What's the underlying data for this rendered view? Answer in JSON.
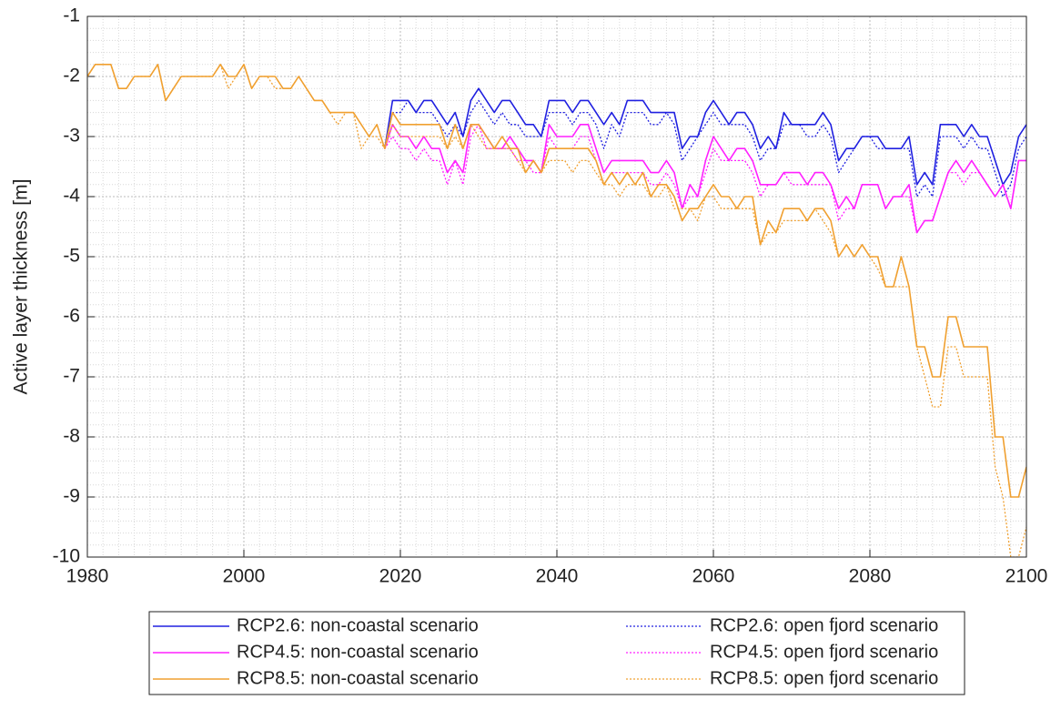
{
  "chart_data": {
    "type": "line",
    "y_label": "Active layer thickness [m]",
    "x": [
      1980,
      1981,
      1982,
      1983,
      1984,
      1985,
      1986,
      1987,
      1988,
      1989,
      1990,
      1991,
      1992,
      1993,
      1994,
      1995,
      1996,
      1997,
      1998,
      1999,
      2000,
      2001,
      2002,
      2003,
      2004,
      2005,
      2006,
      2007,
      2008,
      2009,
      2010,
      2011,
      2012,
      2013,
      2014,
      2015,
      2016,
      2017,
      2018,
      2019,
      2020,
      2021,
      2022,
      2023,
      2024,
      2025,
      2026,
      2027,
      2028,
      2029,
      2030,
      2031,
      2032,
      2033,
      2034,
      2035,
      2036,
      2037,
      2038,
      2039,
      2040,
      2041,
      2042,
      2043,
      2044,
      2045,
      2046,
      2047,
      2048,
      2049,
      2050,
      2051,
      2052,
      2053,
      2054,
      2055,
      2056,
      2057,
      2058,
      2059,
      2060,
      2061,
      2062,
      2063,
      2064,
      2065,
      2066,
      2067,
      2068,
      2069,
      2070,
      2071,
      2072,
      2073,
      2074,
      2075,
      2076,
      2077,
      2078,
      2079,
      2080,
      2081,
      2082,
      2083,
      2084,
      2085,
      2086,
      2087,
      2088,
      2089,
      2090,
      2091,
      2092,
      2093,
      2094,
      2095,
      2096,
      2097,
      2098,
      2099,
      2100
    ],
    "xlim": [
      1980,
      2100
    ],
    "xticks": [
      1980,
      2000,
      2020,
      2040,
      2060,
      2080,
      2100
    ],
    "ylim": [
      -10,
      -1
    ],
    "yticks": [
      -10,
      -9,
      -8,
      -7,
      -6,
      -5,
      -4,
      -3,
      -2,
      -1
    ],
    "grid": true,
    "minor_grid": true,
    "legend": "below",
    "series": [
      {
        "name": "RCP2.6: non-coastal scenario",
        "color": "#2020e0",
        "dash": "solid",
        "values": [
          null,
          null,
          null,
          null,
          null,
          null,
          null,
          null,
          null,
          null,
          null,
          null,
          null,
          null,
          null,
          null,
          null,
          null,
          null,
          null,
          null,
          null,
          null,
          null,
          null,
          null,
          null,
          null,
          null,
          null,
          null,
          null,
          null,
          null,
          null,
          null,
          null,
          null,
          -3.2,
          -2.4,
          -2.4,
          -2.4,
          -2.6,
          -2.4,
          -2.4,
          -2.6,
          -2.8,
          -2.6,
          -3,
          -2.4,
          -2.2,
          -2.4,
          -2.6,
          -2.4,
          -2.4,
          -2.6,
          -2.8,
          -2.8,
          -3,
          -2.4,
          -2.4,
          -2.4,
          -2.6,
          -2.4,
          -2.4,
          -2.6,
          -2.8,
          -2.6,
          -2.8,
          -2.4,
          -2.4,
          -2.4,
          -2.6,
          -2.6,
          -2.6,
          -2.6,
          -3.2,
          -3,
          -3,
          -2.6,
          -2.4,
          -2.6,
          -2.8,
          -2.6,
          -2.6,
          -2.8,
          -3.2,
          -3,
          -3.2,
          -2.6,
          -2.8,
          -2.8,
          -2.8,
          -2.8,
          -2.6,
          -2.8,
          -3.4,
          -3.2,
          -3.2,
          -3,
          -3,
          -3,
          -3.2,
          -3.2,
          -3.2,
          -3,
          -3.8,
          -3.6,
          -3.8,
          -2.8,
          -2.8,
          -2.8,
          -3,
          -2.8,
          -3,
          -3,
          -3.4,
          -3.8,
          -3.6,
          -3,
          -2.8
        ]
      },
      {
        "name": "RCP2.6: open fjord scenario",
        "color": "#2020e0",
        "dash": "dotted",
        "values": [
          null,
          null,
          null,
          null,
          null,
          null,
          null,
          null,
          null,
          null,
          null,
          null,
          null,
          null,
          null,
          null,
          null,
          null,
          null,
          null,
          null,
          null,
          null,
          null,
          null,
          null,
          null,
          null,
          null,
          null,
          null,
          null,
          null,
          null,
          null,
          null,
          null,
          null,
          -3.2,
          -2.6,
          -2.6,
          -2.4,
          -2.6,
          -2.6,
          -2.6,
          -2.8,
          -3,
          -2.8,
          -3,
          -2.6,
          -2.4,
          -2.6,
          -2.8,
          -2.6,
          -2.8,
          -2.8,
          -3,
          -3,
          -3,
          -2.6,
          -2.6,
          -2.6,
          -2.8,
          -2.6,
          -2.6,
          -2.8,
          -3.2,
          -2.8,
          -3,
          -2.6,
          -2.6,
          -2.6,
          -2.8,
          -2.8,
          -2.6,
          -2.8,
          -3.4,
          -3.2,
          -3,
          -2.8,
          -2.6,
          -2.8,
          -2.8,
          -2.8,
          -2.8,
          -3,
          -3.4,
          -3.2,
          -3.2,
          -2.8,
          -2.8,
          -2.8,
          -3,
          -3,
          -2.8,
          -3,
          -3.6,
          -3.4,
          -3.2,
          -3,
          -3,
          -3.2,
          -3.2,
          -3.2,
          -3.2,
          -3.2,
          -4,
          -3.8,
          -4,
          -3,
          -3,
          -3,
          -3.2,
          -3,
          -3.2,
          -3.2,
          -3.6,
          -4,
          -3.8,
          -3.2,
          -3
        ]
      },
      {
        "name": "RCP4.5: non-coastal scenario",
        "color": "#ff20ff",
        "dash": "solid",
        "values": [
          null,
          null,
          null,
          null,
          null,
          null,
          null,
          null,
          null,
          null,
          null,
          null,
          null,
          null,
          null,
          null,
          null,
          null,
          null,
          null,
          null,
          null,
          null,
          null,
          null,
          null,
          null,
          null,
          null,
          null,
          null,
          null,
          null,
          null,
          null,
          null,
          null,
          null,
          -3.2,
          -2.8,
          -3,
          -3,
          -3.2,
          -3,
          -3.2,
          -3.2,
          -3.6,
          -3.4,
          -3.6,
          -2.8,
          -2.8,
          -3,
          -3.2,
          -3.2,
          -3,
          -3.2,
          -3.4,
          -3.4,
          -3.6,
          -2.8,
          -3,
          -3,
          -3,
          -2.8,
          -2.8,
          -3.2,
          -3.6,
          -3.4,
          -3.4,
          -3.4,
          -3.4,
          -3.4,
          -3.6,
          -3.6,
          -3.4,
          -3.6,
          -4.2,
          -3.8,
          -4,
          -3.4,
          -3,
          -3.2,
          -3.4,
          -3.2,
          -3.2,
          -3.4,
          -3.8,
          -3.8,
          -3.8,
          -3.6,
          -3.6,
          -3.6,
          -3.8,
          -3.6,
          -3.6,
          -3.8,
          -4.2,
          -4,
          -4.2,
          -3.8,
          -3.8,
          -3.8,
          -4.2,
          -4,
          -4,
          -3.8,
          -4.6,
          -4.4,
          -4.4,
          -4,
          -3.6,
          -3.4,
          -3.6,
          -3.4,
          -3.6,
          -3.8,
          -4,
          -3.8,
          -4.2,
          -3.4,
          -3.4
        ]
      },
      {
        "name": "RCP4.5: open fjord scenario",
        "color": "#ff20ff",
        "dash": "dotted",
        "values": [
          null,
          null,
          null,
          null,
          null,
          null,
          null,
          null,
          null,
          null,
          null,
          null,
          null,
          null,
          null,
          null,
          null,
          null,
          null,
          null,
          null,
          null,
          null,
          null,
          null,
          null,
          null,
          null,
          null,
          null,
          null,
          null,
          null,
          null,
          null,
          null,
          null,
          null,
          -3.2,
          -3,
          -3.2,
          -3.2,
          -3.4,
          -3.2,
          -3.4,
          -3.4,
          -3.8,
          -3.4,
          -3.8,
          -3,
          -2.8,
          -3.2,
          -3.2,
          -3.2,
          -3.2,
          -3.4,
          -3.4,
          -3.6,
          -3.6,
          -3,
          -3.2,
          -3.2,
          -3.2,
          -3,
          -3,
          -3.4,
          -3.8,
          -3.6,
          -3.6,
          -3.6,
          -3.6,
          -3.6,
          -3.8,
          -3.8,
          -3.6,
          -3.8,
          -4.2,
          -4,
          -4,
          -3.6,
          -3.2,
          -3.4,
          -3.4,
          -3.4,
          -3.4,
          -3.6,
          -4,
          -3.8,
          -3.8,
          -3.6,
          -3.8,
          -3.8,
          -3.8,
          -3.8,
          -3.8,
          -3.8,
          -4.4,
          -4.2,
          -4.2,
          -3.8,
          -3.8,
          -3.8,
          -4.2,
          -4,
          -4,
          -4,
          -4.6,
          -4.4,
          -4.4,
          -4,
          -3.6,
          -3.6,
          -3.8,
          -3.6,
          -3.6,
          -3.8,
          -4,
          -3.8,
          -4.2,
          -3.4,
          -3.4
        ]
      },
      {
        "name": "RCP8.5: non-coastal scenario",
        "color": "#f0a030",
        "dash": "solid",
        "values": [
          -2,
          -1.8,
          -1.8,
          -1.8,
          -2.2,
          -2.2,
          -2,
          -2,
          -2,
          -1.8,
          -2.4,
          -2.2,
          -2,
          -2,
          -2,
          -2,
          -2,
          -1.8,
          -2,
          -2,
          -1.8,
          -2.2,
          -2,
          -2,
          -2,
          -2.2,
          -2.2,
          -2,
          -2.2,
          -2.4,
          -2.4,
          -2.6,
          -2.6,
          -2.6,
          -2.6,
          -2.8,
          -3,
          -2.8,
          -3.2,
          -2.6,
          -2.8,
          -2.8,
          -2.8,
          -2.8,
          -2.8,
          -2.8,
          -3.2,
          -2.8,
          -3.2,
          -2.8,
          -2.8,
          -3,
          -3.2,
          -3,
          -3.2,
          -3.2,
          -3.6,
          -3.4,
          -3.6,
          -3.2,
          -3.2,
          -3.2,
          -3.2,
          -3.2,
          -3.2,
          -3.4,
          -3.8,
          -3.6,
          -3.8,
          -3.6,
          -3.8,
          -3.6,
          -4,
          -3.8,
          -3.8,
          -4,
          -4.4,
          -4.2,
          -4.2,
          -4,
          -3.8,
          -4,
          -4,
          -4.2,
          -4,
          -4,
          -4.8,
          -4.4,
          -4.6,
          -4.2,
          -4.2,
          -4.2,
          -4.4,
          -4.2,
          -4.2,
          -4.4,
          -5,
          -4.8,
          -5,
          -4.8,
          -5,
          -5,
          -5.5,
          -5.5,
          -5,
          -5.5,
          -6.5,
          -6.5,
          -7,
          -7,
          -6,
          -6,
          -6.5,
          -6.5,
          -6.5,
          -6.5,
          -8,
          -8,
          -9,
          -9,
          -8.5
        ]
      },
      {
        "name": "RCP8.5: open fjord scenario",
        "color": "#f0a030",
        "dash": "dotted",
        "values": [
          -2,
          -1.8,
          -1.8,
          -1.8,
          -2.2,
          -2.2,
          -2,
          -2,
          -2,
          -1.8,
          -2.4,
          -2.2,
          -2,
          -2,
          -2,
          -2,
          -2,
          -1.8,
          -2.2,
          -2,
          -1.8,
          -2.2,
          -2,
          -2,
          -2.2,
          -2.2,
          -2.2,
          -2,
          -2.2,
          -2.4,
          -2.4,
          -2.6,
          -2.8,
          -2.6,
          -2.6,
          -3.2,
          -3,
          -3,
          -3.2,
          -2.8,
          -3,
          -3,
          -3,
          -3,
          -3,
          -3,
          -3.2,
          -3,
          -3.2,
          -2.8,
          -3,
          -3.2,
          -3.2,
          -3.2,
          -3.2,
          -3.4,
          -3.6,
          -3.4,
          -3.6,
          -3.4,
          -3.4,
          -3.4,
          -3.6,
          -3.4,
          -3.4,
          -3.6,
          -3.8,
          -3.8,
          -4,
          -3.8,
          -3.8,
          -3.8,
          -4,
          -4,
          -3.8,
          -4.2,
          -4.2,
          -4.2,
          -4.4,
          -4,
          -4,
          -4.2,
          -4.2,
          -4.2,
          -4.2,
          -4.2,
          -4.8,
          -4.6,
          -4.6,
          -4.4,
          -4.4,
          -4.4,
          -4.4,
          -4.2,
          -4.4,
          -4.6,
          -5,
          -4.8,
          -5,
          -4.8,
          -5,
          -5.2,
          -5.5,
          -5.5,
          -5.5,
          -5.5,
          -6.5,
          -7,
          -7.5,
          -7.5,
          -6.5,
          -6.5,
          -7,
          -7,
          -7,
          -7,
          -8.5,
          -9,
          -10,
          -10,
          -9.5
        ]
      }
    ]
  }
}
